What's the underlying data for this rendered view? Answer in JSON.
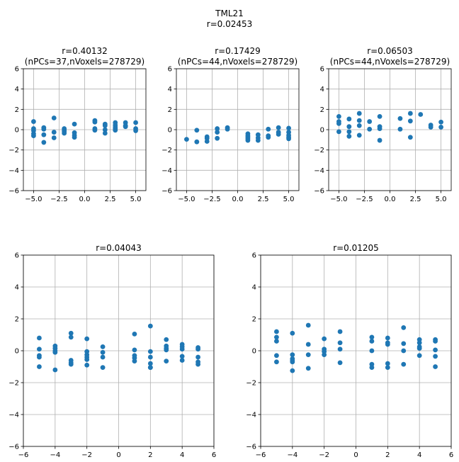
{
  "figure": {
    "suptitle_line1": "TML21",
    "suptitle_line2": "r=0.02453"
  },
  "colors": {
    "marker": "#1f77b4",
    "grid": "#b0b0b0",
    "axes": "#000000"
  },
  "chart_data": [
    {
      "type": "scatter",
      "title_line1": "r=0.40132",
      "title_line2": "(nPCs=37,nVoxels=278729)",
      "xlabel": "",
      "ylabel": "",
      "xlim": [
        -6,
        6
      ],
      "ylim": [
        -6,
        6
      ],
      "xticks": [
        "−5.0",
        "−2.5",
        "0.0",
        "2.5",
        "5.0"
      ],
      "xtick_values": [
        -5,
        -2.5,
        0,
        2.5,
        5
      ],
      "yticks": [
        "−6",
        "−4",
        "−2",
        "0",
        "2",
        "4",
        "6"
      ],
      "ytick_values": [
        -6,
        -4,
        -2,
        0,
        2,
        4,
        6
      ],
      "grid": true,
      "x": [
        -5,
        -5,
        -5,
        -5,
        -5,
        -4,
        -4,
        -4,
        -4,
        -3,
        -3,
        -3,
        -2,
        -2,
        -2,
        -2,
        -1,
        -1,
        -1,
        -1,
        1,
        1,
        1,
        1,
        2,
        2,
        2,
        2,
        3,
        3,
        3,
        3,
        3,
        4,
        4,
        4,
        5,
        5,
        5
      ],
      "y": [
        0.8,
        0.1,
        -0.1,
        -0.4,
        -0.6,
        0.2,
        0.05,
        -0.5,
        -1.25,
        1.15,
        -0.25,
        -0.8,
        0.1,
        -0.05,
        -0.2,
        -0.35,
        0.55,
        -0.3,
        -0.55,
        -0.75,
        0.9,
        0.75,
        0.1,
        -0.05,
        0.55,
        0.4,
        0,
        -0.35,
        0.7,
        0.45,
        0.25,
        0.1,
        -0.05,
        0.7,
        0.4,
        0.3,
        0.7,
        0.1,
        -0.1
      ]
    },
    {
      "type": "scatter",
      "title_line1": "r=0.17429",
      "title_line2": "(nPCs=44,nVoxels=278729)",
      "xlabel": "",
      "ylabel": "",
      "xlim": [
        -6,
        6
      ],
      "ylim": [
        -6,
        6
      ],
      "xticks": [
        "−5.0",
        "−2.5",
        "0.0",
        "2.5",
        "5.0"
      ],
      "xtick_values": [
        -5,
        -2.5,
        0,
        2.5,
        5
      ],
      "yticks": [
        "−6",
        "−4",
        "−2",
        "0",
        "2",
        "4",
        "6"
      ],
      "ytick_values": [
        -6,
        -4,
        -2,
        0,
        2,
        4,
        6
      ],
      "grid": true,
      "x": [
        -5,
        -4,
        -4,
        -3,
        -3,
        -3,
        -2,
        -2,
        -2,
        -1,
        -1,
        1,
        1,
        1,
        1,
        1,
        2,
        2,
        2,
        3,
        3,
        3,
        4,
        4,
        4,
        5,
        5,
        5,
        5,
        5
      ],
      "y": [
        -0.95,
        -0.05,
        -1.2,
        -0.7,
        -0.85,
        -1.15,
        0.1,
        -0.25,
        -0.85,
        0.2,
        0.05,
        -0.4,
        -0.6,
        -0.75,
        -0.9,
        -1.05,
        -0.5,
        -0.8,
        -1.05,
        0.05,
        -0.6,
        -0.75,
        0.2,
        -0.25,
        -0.45,
        0.15,
        -0.25,
        -0.55,
        -0.75,
        -0.9
      ]
    },
    {
      "type": "scatter",
      "title_line1": "r=0.06503",
      "title_line2": "(nPCs=44,nVoxels=278729)",
      "xlabel": "",
      "ylabel": "",
      "xlim": [
        -6,
        6
      ],
      "ylim": [
        -6,
        6
      ],
      "xticks": [
        "−5.0",
        "−2.5",
        "0.0",
        "2.5",
        "5.0"
      ],
      "xtick_values": [
        -5,
        -2.5,
        0,
        2.5,
        5
      ],
      "yticks": [
        "−6",
        "−4",
        "−2",
        "0",
        "2",
        "4",
        "6"
      ],
      "ytick_values": [
        -6,
        -4,
        -2,
        0,
        2,
        4,
        6
      ],
      "grid": true,
      "x": [
        -5,
        -5,
        -5,
        -5,
        -4,
        -4,
        -4,
        -4,
        -3,
        -3,
        -3,
        -3,
        -2,
        -2,
        -1,
        -1,
        -1,
        -1,
        1,
        1,
        2,
        2,
        2,
        3,
        4,
        4,
        5,
        5
      ],
      "y": [
        1.3,
        0.8,
        0.6,
        -0.2,
        1.05,
        0.3,
        -0.2,
        -0.65,
        1.6,
        0.9,
        0.4,
        -0.55,
        0.8,
        0.05,
        1.3,
        0.3,
        0.1,
        -1.05,
        1.1,
        0.05,
        1.6,
        0.85,
        -0.75,
        1.5,
        0.45,
        0.25,
        0.75,
        0.25
      ]
    },
    {
      "type": "scatter",
      "title_line1": "r=0.04043",
      "title_line2": "",
      "xlabel": "",
      "ylabel": "",
      "xlim": [
        -6,
        6
      ],
      "ylim": [
        -6,
        6
      ],
      "xticks": [
        "−6",
        "−4",
        "−2",
        "0",
        "2",
        "4",
        "6"
      ],
      "xtick_values": [
        -6,
        -4,
        -2,
        0,
        2,
        4,
        6
      ],
      "yticks": [
        "−6",
        "−4",
        "−2",
        "0",
        "2",
        "4",
        "6"
      ],
      "ytick_values": [
        -6,
        -4,
        -2,
        0,
        2,
        4,
        6
      ],
      "grid": true,
      "x": [
        -5,
        -5,
        -5,
        -5,
        -5,
        -4,
        -4,
        -4,
        -4,
        -4,
        -3,
        -3,
        -3,
        -3,
        -3,
        -2,
        -2,
        -2,
        -2,
        -2,
        -2,
        -1,
        -1,
        -1,
        -1,
        1,
        1,
        1,
        1,
        1,
        2,
        2,
        2,
        2,
        2,
        2,
        3,
        3,
        3,
        3,
        3,
        4,
        4,
        4,
        4,
        4,
        5,
        5,
        5,
        5,
        5
      ],
      "y": [
        0.8,
        0.1,
        -0.3,
        -0.4,
        -1.0,
        0.3,
        0.15,
        0.0,
        -0.1,
        -1.2,
        1.1,
        0.85,
        -0.6,
        -0.75,
        -0.85,
        0.75,
        -0.05,
        -0.25,
        -0.4,
        -0.55,
        -0.9,
        0.25,
        -0.1,
        -0.4,
        -1.05,
        1.05,
        0.05,
        -0.3,
        -0.45,
        -0.65,
        1.55,
        -0.05,
        -0.4,
        -0.8,
        -1.05,
        -1.05,
        0.7,
        0.3,
        0.15,
        0.05,
        -0.65,
        0.4,
        0.25,
        0.1,
        -0.35,
        -0.6,
        0.2,
        0.1,
        -0.4,
        -0.7,
        -0.85
      ]
    },
    {
      "type": "scatter",
      "title_line1": "r=0.01205",
      "title_line2": "",
      "xlabel": "",
      "ylabel": "",
      "xlim": [
        -6,
        6
      ],
      "ylim": [
        -6,
        6
      ],
      "xticks": [
        "−6",
        "−4",
        "−2",
        "0",
        "2",
        "4",
        "6"
      ],
      "xtick_values": [
        -6,
        -4,
        -2,
        0,
        2,
        4,
        6
      ],
      "yticks": [
        "−6",
        "−4",
        "−2",
        "0",
        "2",
        "4",
        "6"
      ],
      "ytick_values": [
        -6,
        -4,
        -2,
        0,
        2,
        4,
        6
      ],
      "grid": true,
      "x": [
        -5,
        -5,
        -5,
        -5,
        -5,
        -4,
        -4,
        -4,
        -4,
        -4,
        -4,
        -3,
        -3,
        -3,
        -3,
        -2,
        -2,
        -2,
        -2,
        -1,
        -1,
        -1,
        -1,
        1,
        1,
        1,
        1,
        1,
        2,
        2,
        2,
        2,
        2,
        3,
        3,
        3,
        3,
        4,
        4,
        4,
        4,
        4,
        5,
        5,
        5,
        5,
        5
      ],
      "y": [
        1.2,
        0.85,
        0.6,
        -0.3,
        -0.7,
        1.1,
        -0.25,
        -0.5,
        -0.6,
        -0.7,
        -1.25,
        1.6,
        0.4,
        -0.25,
        -1.1,
        0.75,
        0.1,
        -0.05,
        -0.25,
        1.2,
        0.5,
        0.1,
        -0.75,
        0.85,
        0.6,
        0.0,
        -0.85,
        -1.05,
        0.8,
        0.5,
        0.4,
        -0.8,
        -1.05,
        1.45,
        0.45,
        0.0,
        -0.85,
        0.7,
        0.5,
        0.25,
        0.15,
        -0.3,
        0.7,
        0.6,
        0.05,
        -0.35,
        -1.0
      ]
    }
  ]
}
